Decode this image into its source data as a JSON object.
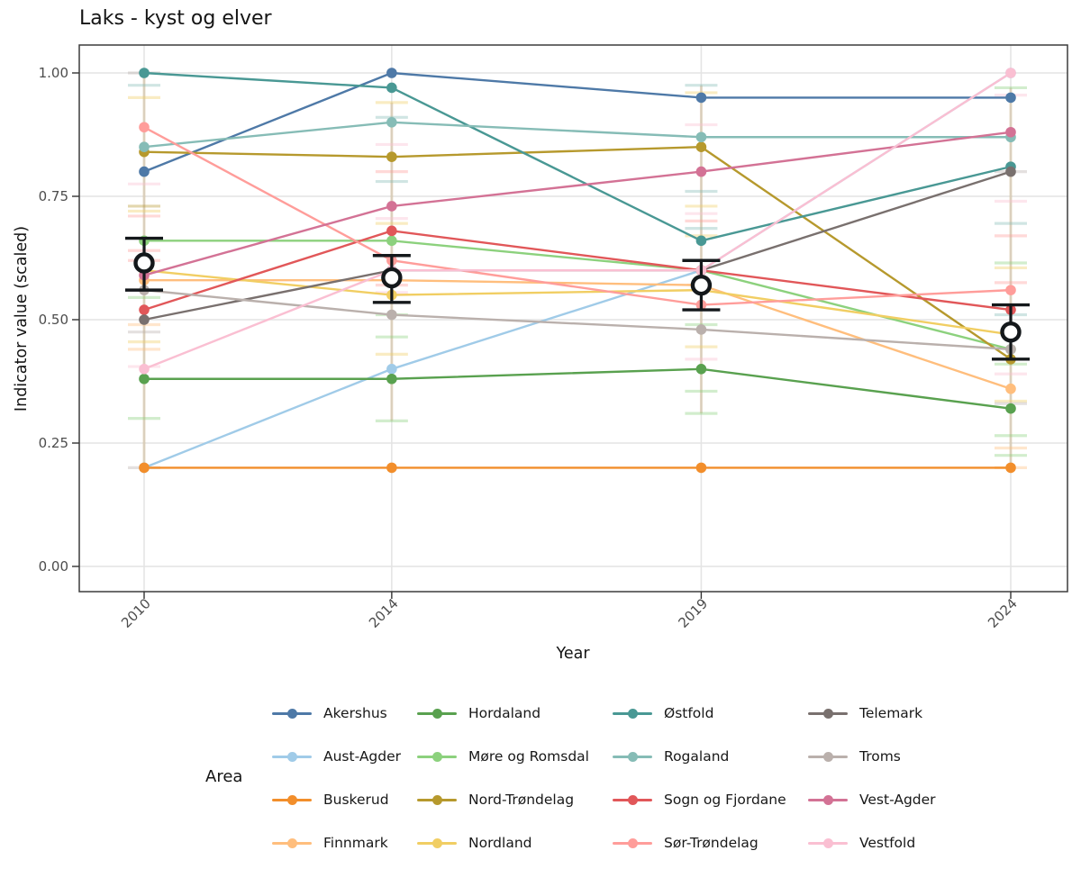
{
  "title": "Laks - kyst og elver",
  "y_axis": {
    "label": "Indicator value (scaled)",
    "ticks": [
      "1.00",
      "0.75",
      "0.50",
      "0.25",
      "0.00"
    ]
  },
  "x_axis": {
    "label": "Year",
    "ticks": [
      "2010",
      "2014",
      "2019",
      "2024"
    ]
  },
  "legend": {
    "title": "Area",
    "columns": [
      [
        {
          "label": "Akershus",
          "color": "#4E79A7"
        },
        {
          "label": "Aust-Agder",
          "color": "#A0CBE8"
        },
        {
          "label": "Buskerud",
          "color": "#F28E2B"
        },
        {
          "label": "Finnmark",
          "color": "#FFBE7D"
        }
      ],
      [
        {
          "label": "Hordaland",
          "color": "#59A14F"
        },
        {
          "label": "Møre og Romsdal",
          "color": "#8CD17D"
        },
        {
          "label": "Nord-Trøndelag",
          "color": "#B6992D"
        },
        {
          "label": "Nordland",
          "color": "#F1CE63"
        }
      ],
      [
        {
          "label": "Østfold",
          "color": "#499894"
        },
        {
          "label": "Rogaland",
          "color": "#86BCB6"
        },
        {
          "label": "Sogn og Fjordane",
          "color": "#E15759"
        },
        {
          "label": "Sør-Trøndelag",
          "color": "#FF9D9A"
        }
      ],
      [
        {
          "label": "Telemark",
          "color": "#79706E"
        },
        {
          "label": "Troms",
          "color": "#BAB0AC"
        },
        {
          "label": "Vest-Agder",
          "color": "#D37295"
        },
        {
          "label": "Vestfold",
          "color": "#FABFD2"
        }
      ]
    ]
  },
  "chart_data": {
    "type": "line",
    "title": "Laks - kyst og elver",
    "xlabel": "Year",
    "ylabel": "Indicator value (scaled)",
    "x": [
      2010,
      2014,
      2019,
      2024
    ],
    "ylim": [
      0,
      1.0
    ],
    "y_ticks": [
      0,
      0.25,
      0.5,
      0.75,
      1.0
    ],
    "grid": true,
    "legend_title": "Area",
    "legend_position": "bottom",
    "series": [
      {
        "name": "Akershus",
        "color": "#4E79A7",
        "values": [
          0.8,
          1.0,
          0.95,
          0.95
        ]
      },
      {
        "name": "Aust-Agder",
        "color": "#A0CBE8",
        "values": [
          0.2,
          0.4,
          0.6,
          1.0
        ]
      },
      {
        "name": "Buskerud",
        "color": "#F28E2B",
        "values": [
          0.2,
          0.2,
          0.2,
          0.2
        ]
      },
      {
        "name": "Finnmark",
        "color": "#FFBE7D",
        "values": [
          0.58,
          0.58,
          0.57,
          0.36
        ]
      },
      {
        "name": "Hordaland",
        "color": "#59A14F",
        "values": [
          0.38,
          0.38,
          0.4,
          0.32
        ]
      },
      {
        "name": "Møre og Romsdal",
        "color": "#8CD17D",
        "values": [
          0.66,
          0.66,
          0.6,
          0.44
        ]
      },
      {
        "name": "Nord-Trøndelag",
        "color": "#B6992D",
        "values": [
          0.84,
          0.83,
          0.85,
          0.42
        ]
      },
      {
        "name": "Nordland",
        "color": "#F1CE63",
        "values": [
          0.6,
          0.55,
          0.56,
          0.47
        ]
      },
      {
        "name": "Østfold",
        "color": "#499894",
        "values": [
          1.0,
          0.97,
          0.66,
          0.81
        ]
      },
      {
        "name": "Rogaland",
        "color": "#86BCB6",
        "values": [
          0.85,
          0.9,
          0.87,
          0.87
        ]
      },
      {
        "name": "Sogn og Fjordane",
        "color": "#E15759",
        "values": [
          0.52,
          0.68,
          0.6,
          0.52
        ]
      },
      {
        "name": "Sør-Trøndelag",
        "color": "#FF9D9A",
        "values": [
          0.89,
          0.62,
          0.53,
          0.56
        ]
      },
      {
        "name": "Telemark",
        "color": "#79706E",
        "values": [
          0.5,
          0.6,
          0.6,
          0.8
        ]
      },
      {
        "name": "Troms",
        "color": "#BAB0AC",
        "values": [
          0.56,
          0.51,
          0.48,
          0.44
        ]
      },
      {
        "name": "Vest-Agder",
        "color": "#D37295",
        "values": [
          0.59,
          0.73,
          0.8,
          0.88
        ]
      },
      {
        "name": "Vestfold",
        "color": "#FABFD2",
        "values": [
          0.4,
          0.6,
          0.6,
          1.0
        ]
      }
    ],
    "mean_marker": {
      "name": "Mean with interval",
      "marker": "open-circle",
      "color": "#14181b",
      "values": [
        0.615,
        0.585,
        0.57,
        0.475
      ],
      "ci_low": [
        0.56,
        0.535,
        0.52,
        0.42
      ],
      "ci_high": [
        0.665,
        0.63,
        0.62,
        0.53
      ]
    },
    "interval_ticks": [
      {
        "year": 2010,
        "value": 1.0,
        "color": "#BAB0AC"
      },
      {
        "year": 2010,
        "value": 0.975,
        "color": "#86BCB6"
      },
      {
        "year": 2010,
        "value": 0.95,
        "color": "#F1CE63"
      },
      {
        "year": 2010,
        "value": 0.775,
        "color": "#FABFD2"
      },
      {
        "year": 2010,
        "value": 0.73,
        "color": "#B6992D"
      },
      {
        "year": 2010,
        "value": 0.72,
        "color": "#F1CE63"
      },
      {
        "year": 2010,
        "value": 0.71,
        "color": "#FF9D9A"
      },
      {
        "year": 2010,
        "value": 0.64,
        "color": "#FF9D9A"
      },
      {
        "year": 2010,
        "value": 0.62,
        "color": "#FF9D9A"
      },
      {
        "year": 2010,
        "value": 0.545,
        "color": "#8CD17D"
      },
      {
        "year": 2010,
        "value": 0.49,
        "color": "#FFBE7D"
      },
      {
        "year": 2010,
        "value": 0.475,
        "color": "#BAB0AC"
      },
      {
        "year": 2010,
        "value": 0.455,
        "color": "#F1CE63"
      },
      {
        "year": 2010,
        "value": 0.44,
        "color": "#FFBE7D"
      },
      {
        "year": 2010,
        "value": 0.405,
        "color": "#FABFD2"
      },
      {
        "year": 2010,
        "value": 0.3,
        "color": "#8CD17D"
      },
      {
        "year": 2010,
        "value": 0.2,
        "color": "#BAB0AC"
      },
      {
        "year": 2014,
        "value": 0.94,
        "color": "#F1CE63"
      },
      {
        "year": 2014,
        "value": 0.91,
        "color": "#86BCB6"
      },
      {
        "year": 2014,
        "value": 0.855,
        "color": "#FABFD2"
      },
      {
        "year": 2014,
        "value": 0.8,
        "color": "#FF9D9A"
      },
      {
        "year": 2014,
        "value": 0.78,
        "color": "#86BCB6"
      },
      {
        "year": 2014,
        "value": 0.705,
        "color": "#FABFD2"
      },
      {
        "year": 2014,
        "value": 0.695,
        "color": "#F1CE63"
      },
      {
        "year": 2014,
        "value": 0.57,
        "color": "#FF9D9A"
      },
      {
        "year": 2014,
        "value": 0.555,
        "color": "#FABFD2"
      },
      {
        "year": 2014,
        "value": 0.51,
        "color": "#8CD17D"
      },
      {
        "year": 2014,
        "value": 0.465,
        "color": "#8CD17D"
      },
      {
        "year": 2014,
        "value": 0.43,
        "color": "#F1CE63"
      },
      {
        "year": 2014,
        "value": 0.295,
        "color": "#8CD17D"
      },
      {
        "year": 2019,
        "value": 0.975,
        "color": "#86BCB6"
      },
      {
        "year": 2019,
        "value": 0.96,
        "color": "#F1CE63"
      },
      {
        "year": 2019,
        "value": 0.895,
        "color": "#FABFD2"
      },
      {
        "year": 2019,
        "value": 0.76,
        "color": "#86BCB6"
      },
      {
        "year": 2019,
        "value": 0.73,
        "color": "#F1CE63"
      },
      {
        "year": 2019,
        "value": 0.715,
        "color": "#FABFD2"
      },
      {
        "year": 2019,
        "value": 0.7,
        "color": "#FF9D9A"
      },
      {
        "year": 2019,
        "value": 0.685,
        "color": "#86BCB6"
      },
      {
        "year": 2019,
        "value": 0.67,
        "color": "#F1CE63"
      },
      {
        "year": 2019,
        "value": 0.49,
        "color": "#8CD17D"
      },
      {
        "year": 2019,
        "value": 0.445,
        "color": "#F1CE63"
      },
      {
        "year": 2019,
        "value": 0.42,
        "color": "#FABFD2"
      },
      {
        "year": 2019,
        "value": 0.355,
        "color": "#8CD17D"
      },
      {
        "year": 2019,
        "value": 0.31,
        "color": "#8CD17D"
      },
      {
        "year": 2024,
        "value": 0.97,
        "color": "#8CD17D"
      },
      {
        "year": 2024,
        "value": 0.955,
        "color": "#FABFD2"
      },
      {
        "year": 2024,
        "value": 0.8,
        "color": "#BAB0AC"
      },
      {
        "year": 2024,
        "value": 0.74,
        "color": "#FABFD2"
      },
      {
        "year": 2024,
        "value": 0.695,
        "color": "#86BCB6"
      },
      {
        "year": 2024,
        "value": 0.67,
        "color": "#FF9D9A"
      },
      {
        "year": 2024,
        "value": 0.615,
        "color": "#8CD17D"
      },
      {
        "year": 2024,
        "value": 0.605,
        "color": "#F1CE63"
      },
      {
        "year": 2024,
        "value": 0.575,
        "color": "#FF9D9A"
      },
      {
        "year": 2024,
        "value": 0.51,
        "color": "#86BCB6"
      },
      {
        "year": 2024,
        "value": 0.41,
        "color": "#8CD17D"
      },
      {
        "year": 2024,
        "value": 0.39,
        "color": "#FABFD2"
      },
      {
        "year": 2024,
        "value": 0.335,
        "color": "#F1CE63"
      },
      {
        "year": 2024,
        "value": 0.33,
        "color": "#BAB0AC"
      },
      {
        "year": 2024,
        "value": 0.265,
        "color": "#8CD17D"
      },
      {
        "year": 2024,
        "value": 0.24,
        "color": "#FFBE7D"
      },
      {
        "year": 2024,
        "value": 0.225,
        "color": "#8CD17D"
      },
      {
        "year": 2024,
        "value": 0.2,
        "color": "#FFBE7D"
      }
    ]
  }
}
